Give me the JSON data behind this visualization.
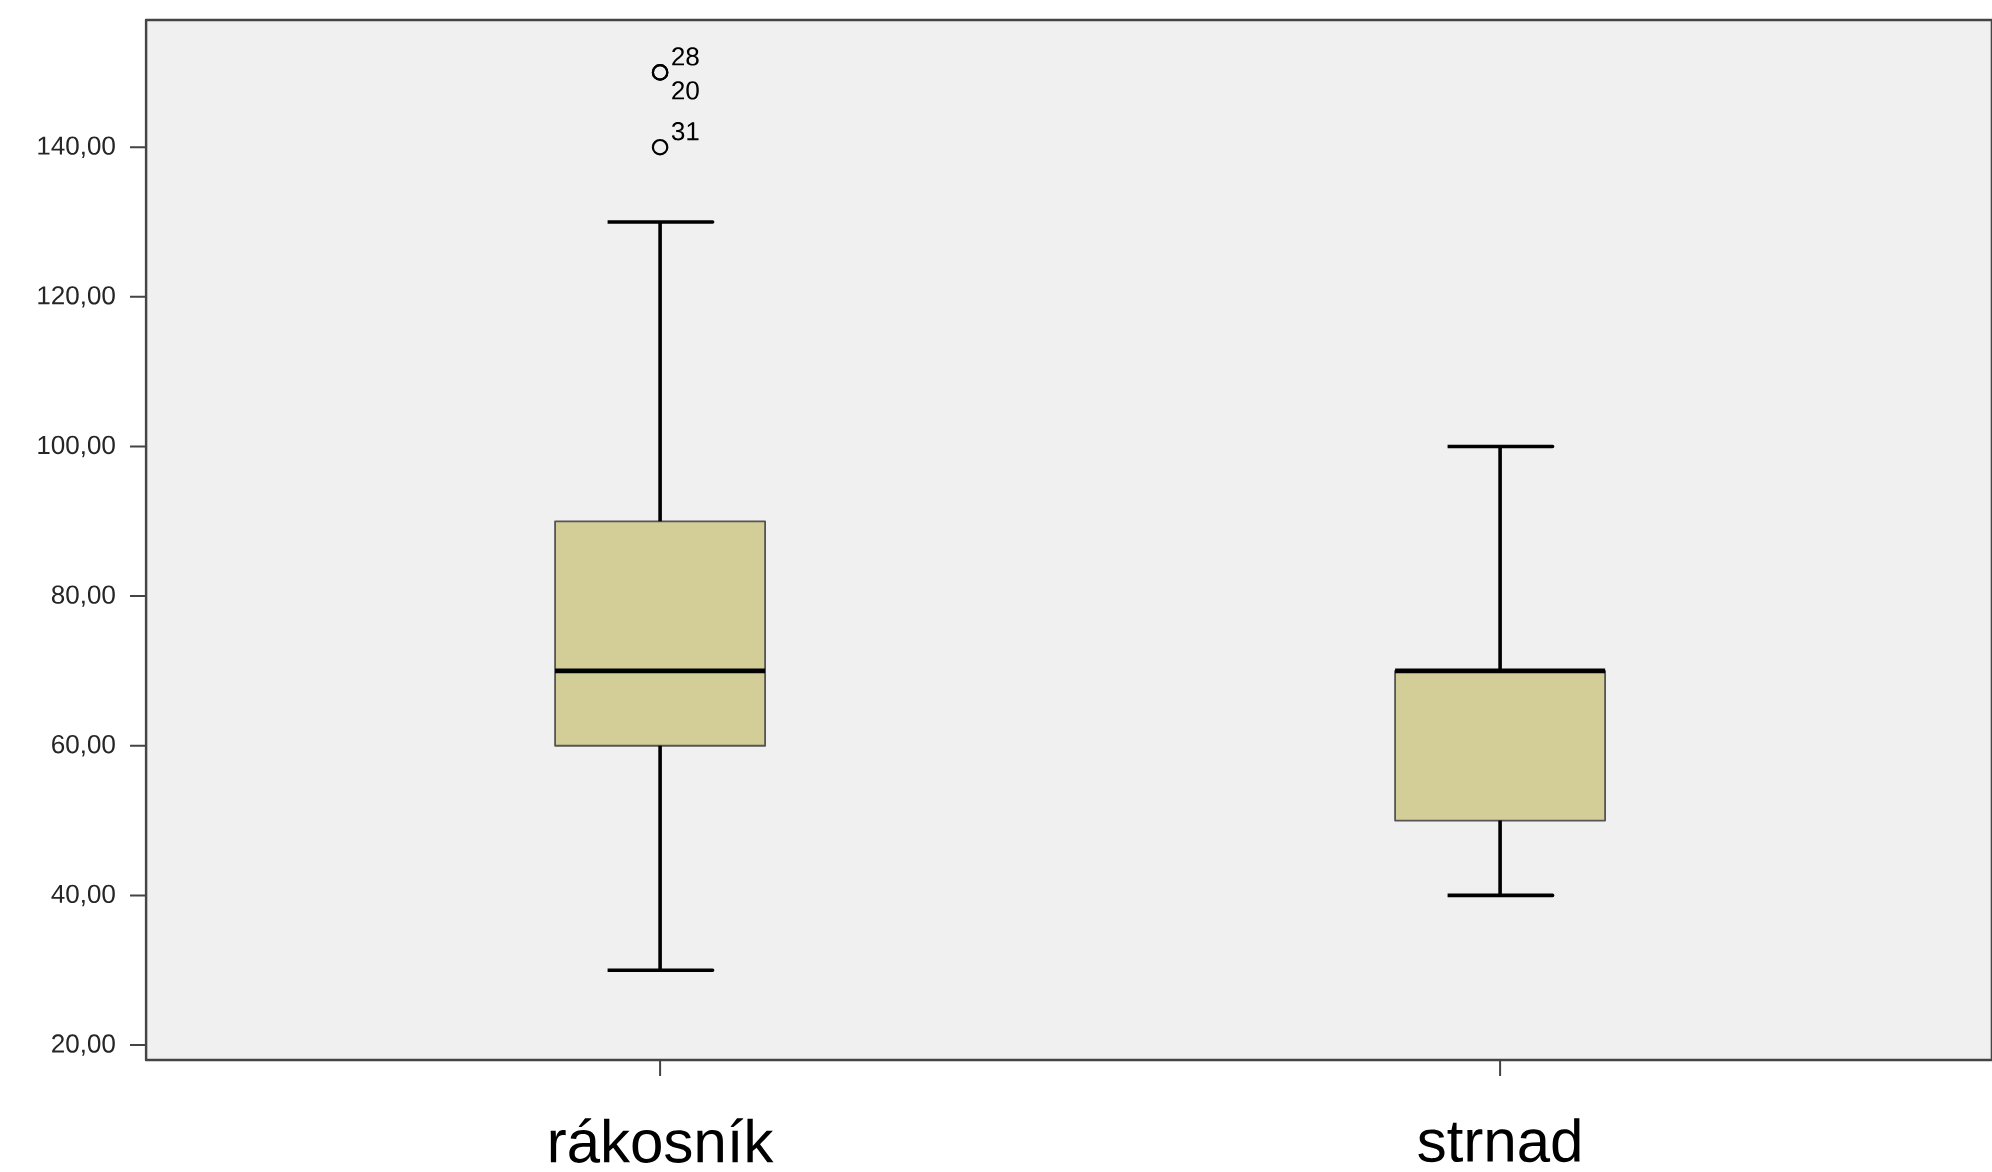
{
  "chart_data": {
    "type": "box",
    "categories": [
      "rákosník",
      "strnad"
    ],
    "boxes": [
      {
        "low": 30,
        "q1": 60,
        "median": 70,
        "q3": 90,
        "high": 130,
        "outliers": [
          150,
          150,
          140
        ]
      },
      {
        "low": 40,
        "q1": 50,
        "median": 70,
        "q3": 70,
        "high": 100
      }
    ],
    "color": "#d3ce97",
    "ylim": [
      18,
      157
    ],
    "yticks": [
      {
        "value": 20,
        "label": "20,00"
      },
      {
        "value": 40,
        "label": "40,00"
      },
      {
        "value": 60,
        "label": "60,00"
      },
      {
        "value": 80,
        "label": "80,00"
      },
      {
        "value": 100,
        "label": "100,00"
      },
      {
        "value": 120,
        "label": "120,00"
      },
      {
        "value": 140,
        "label": "140,00"
      }
    ],
    "annotations": [
      "28",
      "20",
      "31"
    ],
    "grid": false
  }
}
